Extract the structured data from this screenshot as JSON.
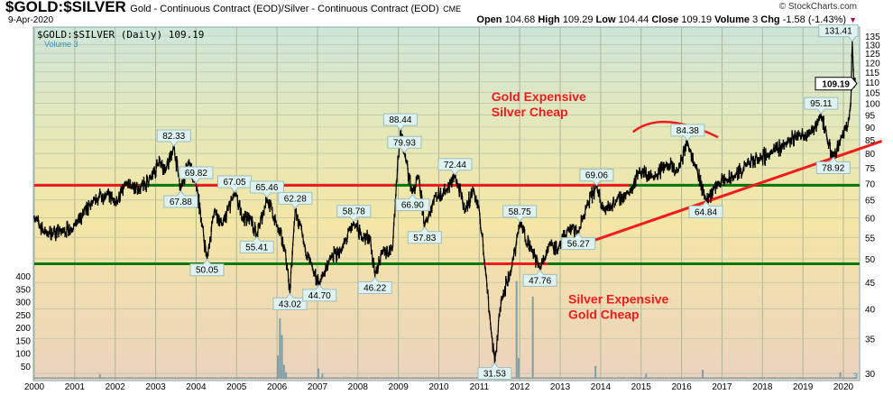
{
  "header": {
    "symbol": "$GOLD:$SILVER",
    "description": "Gold - Continuous Contract (EOD)/Silver - Continuous Contract (EOD)",
    "exchange": "CME",
    "date": "9-Apr-2020",
    "brand": "© StockCharts.com",
    "open_label": "Open",
    "open": "104.68",
    "high_label": "High",
    "high": "109.29",
    "low_label": "Low",
    "low": "104.44",
    "close_label": "Close",
    "close": "109.19",
    "volume_label": "Volume",
    "volume": "3",
    "chg_label": "Chg",
    "chg": "-1.58 (-1.43%)"
  },
  "legend": {
    "price": "$GOLD:$SILVER (Daily) 109.19",
    "volume": "Volume 3"
  },
  "colors": {
    "price": "#000000",
    "red": "#ee1c1c",
    "green": "#0a7a0a",
    "volume": "#7f9ea6",
    "label_bg": "#dff2f0",
    "label_border": "#9bbfc0"
  },
  "chart_data": {
    "type": "line",
    "scale": "log",
    "ylim": [
      30,
      135
    ],
    "xlim": [
      2000,
      2020.4
    ],
    "x_ticks": [
      "2000",
      "2001",
      "2002",
      "2003",
      "2004",
      "2005",
      "2006",
      "2007",
      "2008",
      "2009",
      "2010",
      "2011",
      "2012",
      "2013",
      "2014",
      "2015",
      "2016",
      "2017",
      "2018",
      "2019",
      "2020"
    ],
    "y_ticks": [
      30,
      35,
      40,
      45,
      50,
      55,
      60,
      65,
      70,
      75,
      80,
      85,
      90,
      95,
      100,
      105,
      110,
      115,
      120,
      125,
      130,
      135
    ],
    "last_value": "109.19",
    "series": [
      {
        "name": "$GOLD:$SILVER",
        "points": [
          [
            2000.0,
            60
          ],
          [
            2000.3,
            56
          ],
          [
            2000.7,
            56.5
          ],
          [
            2001.0,
            58
          ],
          [
            2001.5,
            65
          ],
          [
            2001.8,
            67
          ],
          [
            2002.0,
            64
          ],
          [
            2002.3,
            70
          ],
          [
            2002.6,
            68
          ],
          [
            2002.9,
            72
          ],
          [
            2003.1,
            78
          ],
          [
            2003.25,
            74
          ],
          [
            2003.45,
            82.33
          ],
          [
            2003.62,
            67.88
          ],
          [
            2003.8,
            77
          ],
          [
            2004.0,
            69.82
          ],
          [
            2004.15,
            58
          ],
          [
            2004.27,
            50.05
          ],
          [
            2004.45,
            62
          ],
          [
            2004.65,
            58
          ],
          [
            2004.95,
            67.05
          ],
          [
            2005.15,
            60
          ],
          [
            2005.35,
            60
          ],
          [
            2005.5,
            55.41
          ],
          [
            2005.75,
            65.46
          ],
          [
            2006.0,
            58
          ],
          [
            2006.2,
            52
          ],
          [
            2006.32,
            43.02
          ],
          [
            2006.45,
            62.28
          ],
          [
            2006.7,
            52
          ],
          [
            2006.9,
            47
          ],
          [
            2007.05,
            44.7
          ],
          [
            2007.3,
            50
          ],
          [
            2007.6,
            52
          ],
          [
            2007.9,
            58.78
          ],
          [
            2008.1,
            55
          ],
          [
            2008.3,
            55
          ],
          [
            2008.42,
            46.22
          ],
          [
            2008.6,
            52
          ],
          [
            2008.85,
            52
          ],
          [
            2008.95,
            70
          ],
          [
            2009.05,
            88.44
          ],
          [
            2009.15,
            79.93
          ],
          [
            2009.35,
            66.9
          ],
          [
            2009.5,
            72
          ],
          [
            2009.65,
            57.83
          ],
          [
            2009.9,
            66
          ],
          [
            2010.2,
            68
          ],
          [
            2010.4,
            72.44
          ],
          [
            2010.65,
            62
          ],
          [
            2010.85,
            68
          ],
          [
            2011.0,
            62
          ],
          [
            2011.15,
            48
          ],
          [
            2011.3,
            36
          ],
          [
            2011.38,
            31.53
          ],
          [
            2011.55,
            42
          ],
          [
            2011.8,
            48
          ],
          [
            2012.0,
            58.75
          ],
          [
            2012.3,
            52
          ],
          [
            2012.5,
            47.76
          ],
          [
            2012.75,
            54
          ],
          [
            2012.95,
            52
          ],
          [
            2013.2,
            57
          ],
          [
            2013.45,
            56.27
          ],
          [
            2013.65,
            63
          ],
          [
            2013.9,
            69.06
          ],
          [
            2014.1,
            62
          ],
          [
            2014.4,
            65
          ],
          [
            2014.7,
            67
          ],
          [
            2014.95,
            74
          ],
          [
            2015.3,
            72
          ],
          [
            2015.6,
            76
          ],
          [
            2015.9,
            74
          ],
          [
            2016.15,
            84.38
          ],
          [
            2016.35,
            76
          ],
          [
            2016.6,
            64.84
          ],
          [
            2016.9,
            70
          ],
          [
            2017.3,
            72
          ],
          [
            2017.6,
            76
          ],
          [
            2017.9,
            78
          ],
          [
            2018.2,
            80
          ],
          [
            2018.6,
            84
          ],
          [
            2018.9,
            87
          ],
          [
            2019.2,
            88
          ],
          [
            2019.45,
            95.11
          ],
          [
            2019.6,
            85
          ],
          [
            2019.75,
            78.92
          ],
          [
            2019.95,
            86
          ],
          [
            2020.1,
            90
          ],
          [
            2020.18,
            100
          ],
          [
            2020.22,
            131.41
          ],
          [
            2020.26,
            110
          ],
          [
            2020.3,
            109.19
          ]
        ]
      }
    ],
    "point_labels": [
      {
        "x": 2003.45,
        "v": 82.33,
        "text": "82.33",
        "pos": "above"
      },
      {
        "x": 2003.62,
        "v": 67.88,
        "text": "67.88",
        "pos": "below"
      },
      {
        "x": 2004.0,
        "v": 69.82,
        "text": "69.82",
        "pos": "above"
      },
      {
        "x": 2004.27,
        "v": 50.05,
        "text": "50.05",
        "pos": "below"
      },
      {
        "x": 2004.95,
        "v": 67.05,
        "text": "67.05",
        "pos": "above"
      },
      {
        "x": 2005.5,
        "v": 55.41,
        "text": "55.41",
        "pos": "below"
      },
      {
        "x": 2005.75,
        "v": 65.46,
        "text": "65.46",
        "pos": "above"
      },
      {
        "x": 2006.32,
        "v": 43.02,
        "text": "43.02",
        "pos": "below"
      },
      {
        "x": 2006.45,
        "v": 62.28,
        "text": "62.28",
        "pos": "above"
      },
      {
        "x": 2007.05,
        "v": 44.7,
        "text": "44.70",
        "pos": "below"
      },
      {
        "x": 2007.9,
        "v": 58.78,
        "text": "58.78",
        "pos": "above"
      },
      {
        "x": 2008.42,
        "v": 46.22,
        "text": "46.22",
        "pos": "below"
      },
      {
        "x": 2009.05,
        "v": 88.44,
        "text": "88.44",
        "pos": "above"
      },
      {
        "x": 2009.15,
        "v": 79.93,
        "text": "79.93",
        "pos": "above"
      },
      {
        "x": 2009.35,
        "v": 66.9,
        "text": "66.90",
        "pos": "below"
      },
      {
        "x": 2009.65,
        "v": 57.83,
        "text": "57.83",
        "pos": "below"
      },
      {
        "x": 2010.4,
        "v": 72.44,
        "text": "72.44",
        "pos": "above"
      },
      {
        "x": 2011.38,
        "v": 31.53,
        "text": "31.53",
        "pos": "below"
      },
      {
        "x": 2012.0,
        "v": 58.75,
        "text": "58.75",
        "pos": "above"
      },
      {
        "x": 2012.5,
        "v": 47.76,
        "text": "47.76",
        "pos": "below"
      },
      {
        "x": 2013.45,
        "v": 56.27,
        "text": "56.27",
        "pos": "below"
      },
      {
        "x": 2013.9,
        "v": 69.06,
        "text": "69.06",
        "pos": "above"
      },
      {
        "x": 2016.15,
        "v": 84.38,
        "text": "84.38",
        "pos": "above"
      },
      {
        "x": 2016.6,
        "v": 64.84,
        "text": "64.84",
        "pos": "below"
      },
      {
        "x": 2019.45,
        "v": 95.11,
        "text": "95.11",
        "pos": "above"
      },
      {
        "x": 2019.75,
        "v": 78.92,
        "text": "78.92",
        "pos": "below"
      },
      {
        "x": 2020.22,
        "v": 131.41,
        "text": "131.41",
        "pos": "above"
      }
    ],
    "annotations": [
      {
        "lines": [
          "Gold Expensive",
          "Silver Cheap"
        ],
        "x": 2011.3,
        "v": 101
      },
      {
        "lines": [
          "Silver Expensive",
          "Gold Cheap"
        ],
        "x": 2013.2,
        "v": 41
      }
    ],
    "hlines": [
      {
        "v": 69.4,
        "from": 2000,
        "to": 2020.4,
        "color": "red"
      },
      {
        "v": 69.4,
        "from": 2002.6,
        "to": 2003.95,
        "color": "green"
      },
      {
        "v": 69.4,
        "from": 2008.9,
        "to": 2009.4,
        "color": "green"
      },
      {
        "v": 69.4,
        "from": 2014.7,
        "to": 2020.4,
        "color": "green"
      },
      {
        "v": 48.9,
        "from": 2000,
        "to": 2020.4,
        "color": "green"
      },
      {
        "v": 48.9,
        "from": 2011.1,
        "to": 2012.7,
        "color": "red"
      }
    ],
    "trendline": {
      "from": [
        2013.3,
        52.5
      ],
      "to": [
        2020.95,
        84.5
      ],
      "color": "red"
    },
    "arc": {
      "from": [
        2014.8,
        88
      ],
      "peak": [
        2015.5,
        92
      ],
      "to": [
        2016.9,
        86
      ],
      "color": "red"
    },
    "volume": {
      "axis": [
        50,
        100,
        150,
        200,
        250,
        300,
        350,
        400
      ],
      "baseline": 5,
      "spikes": [
        [
          2001.6,
          18
        ],
        [
          2006.0,
          90
        ],
        [
          2006.05,
          235
        ],
        [
          2006.1,
          170
        ],
        [
          2006.15,
          55
        ],
        [
          2006.2,
          25
        ],
        [
          2007.0,
          40
        ],
        [
          2007.1,
          20
        ],
        [
          2011.9,
          380
        ],
        [
          2011.95,
          80
        ],
        [
          2012.3,
          320
        ],
        [
          2013.85,
          50
        ],
        [
          2015.1,
          20
        ],
        [
          2016.5,
          35
        ],
        [
          2019.9,
          25
        ]
      ]
    }
  }
}
